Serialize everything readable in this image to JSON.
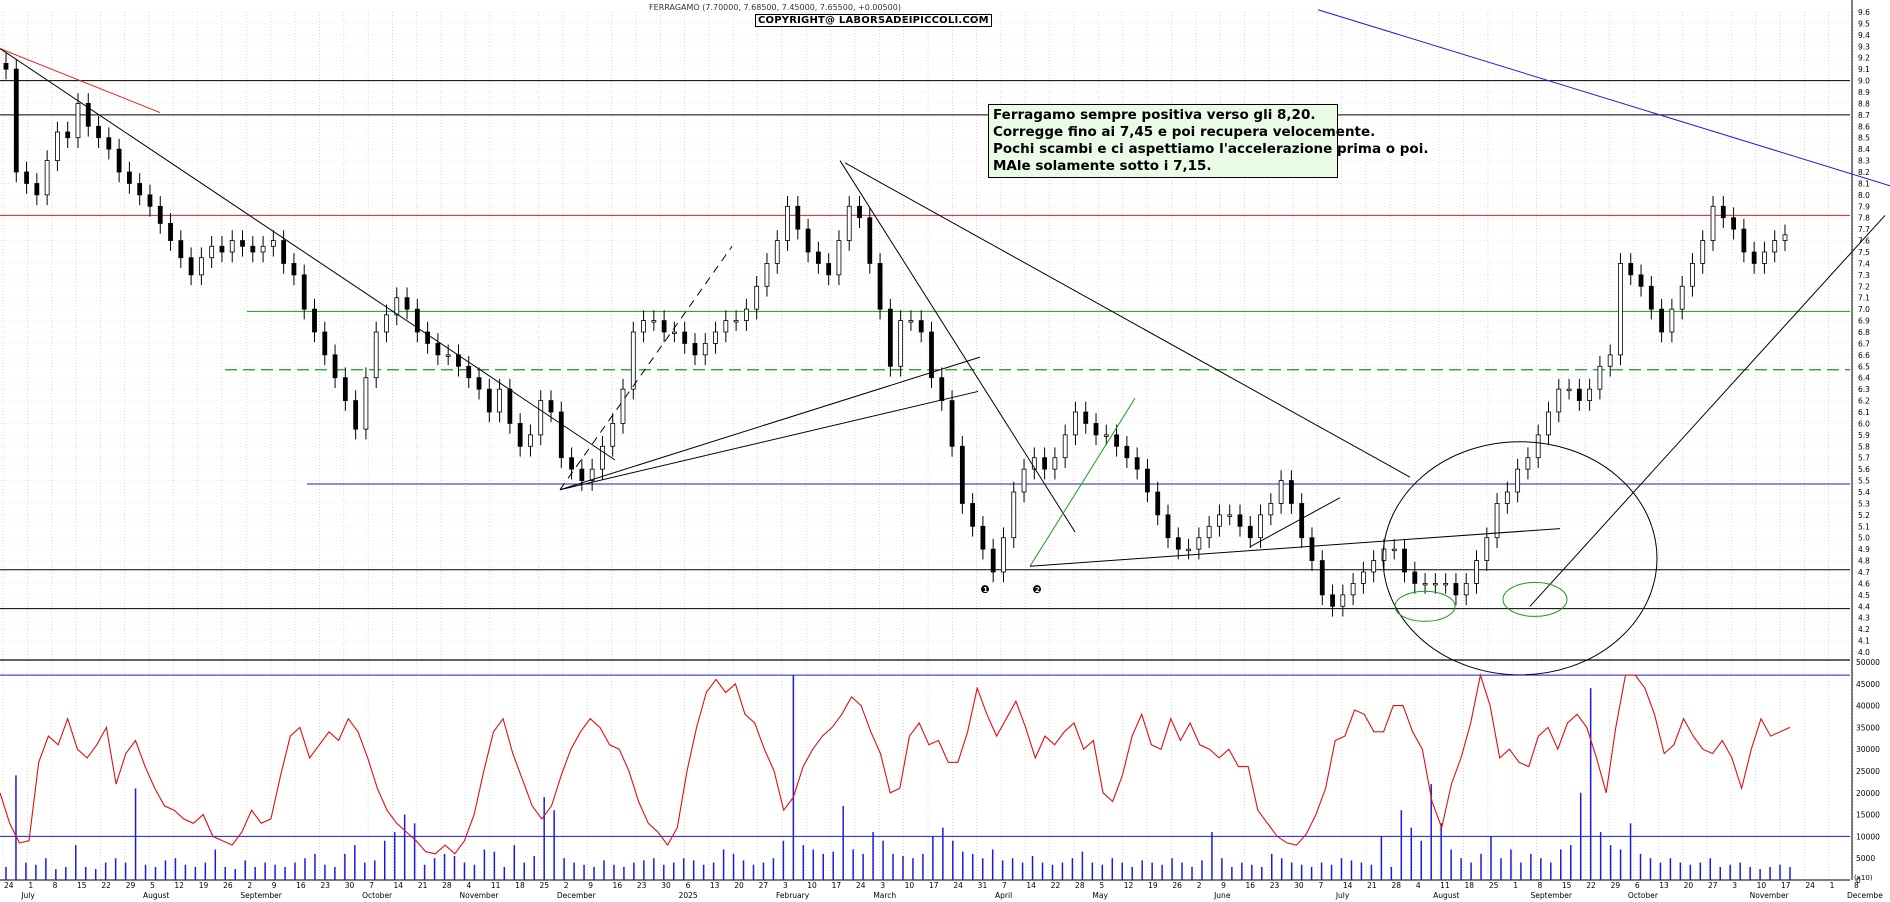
{
  "header": {
    "title": "FERRAGAMO (7.70000, 7.68500, 7.45000, 7.65500, +0.00500)",
    "copyright": "COPYRIGHT@ LABORSADEIPICCOLI.COM"
  },
  "annotation": {
    "lines": [
      "Ferragamo sempre positiva verso gli 8,20.",
      "Corregge fino ai 7,45 e poi recupera velocemente.",
      "Pochi scambi e ci aspettiamo l'accelerazione prima o poi.",
      "MAle solamente sotto i 7,15."
    ]
  },
  "markers": [
    "1",
    "2"
  ],
  "volume_unit_label": "(x10)",
  "colors": {
    "candles": "#000000",
    "trendline_red": "#e02020",
    "trendline_blue": "#1a1ae0",
    "support_green": "#1a9a1a",
    "volume_bars": "#1a1ae0",
    "oscillator": "#e01010"
  },
  "chart_data": [
    {
      "type": "candlestick",
      "title": "FERRAGAMO",
      "y_ticks": [
        "4.0",
        "4.1",
        "4.2",
        "4.3",
        "4.4",
        "4.5",
        "4.6",
        "4.7",
        "4.8",
        "4.9",
        "5.0",
        "5.1",
        "5.2",
        "5.3",
        "5.4",
        "5.5",
        "5.6",
        "5.7",
        "5.8",
        "5.9",
        "6.0",
        "6.1",
        "6.2",
        "6.3",
        "6.4",
        "6.5",
        "6.6",
        "6.7",
        "6.8",
        "6.9",
        "7.0",
        "7.1",
        "7.2",
        "7.3",
        "7.4",
        "7.5",
        "7.6",
        "7.7",
        "7.8",
        "7.9",
        "8.0",
        "8.1",
        "8.2",
        "8.3",
        "8.4",
        "8.5",
        "8.6",
        "8.7",
        "8.8",
        "8.9",
        "9.0",
        "9.1",
        "9.2",
        "9.3",
        "9.4",
        "9.5",
        "9.6"
      ],
      "ylim": [
        4.0,
        9.6
      ],
      "x_day_ticks": [
        "24",
        "1",
        "8",
        "15",
        "22",
        "29",
        "5",
        "12",
        "19",
        "26",
        "2",
        "9",
        "16",
        "23",
        "30",
        "7",
        "14",
        "21",
        "28",
        "4",
        "11",
        "18",
        "25",
        "2",
        "9",
        "16",
        "23",
        "30",
        "6",
        "13",
        "20",
        "27",
        "3",
        "10",
        "17",
        "24",
        "3",
        "10",
        "17",
        "24",
        "31",
        "7",
        "14",
        "22",
        "28",
        "5",
        "12",
        "19",
        "26",
        "2",
        "9",
        "16",
        "23",
        "30",
        "7",
        "14",
        "21",
        "28",
        "4",
        "11",
        "18",
        "25",
        "1",
        "8",
        "15",
        "22",
        "29",
        "6",
        "13",
        "20",
        "27",
        "3",
        "10",
        "17",
        "24",
        "1",
        "8"
      ],
      "x_month_ticks": [
        "July",
        "August",
        "September",
        "October",
        "November",
        "December",
        "2025",
        "February",
        "March",
        "April",
        "May",
        "June",
        "July",
        "August",
        "September",
        "October",
        "November",
        "Decembe"
      ],
      "closes": [
        9.1,
        8.2,
        8.1,
        8.0,
        8.3,
        8.55,
        8.5,
        8.8,
        8.6,
        8.5,
        8.4,
        8.2,
        8.1,
        8.0,
        7.9,
        7.75,
        7.6,
        7.45,
        7.3,
        7.45,
        7.55,
        7.5,
        7.6,
        7.55,
        7.5,
        7.55,
        7.6,
        7.4,
        7.3,
        7.0,
        6.8,
        6.6,
        6.4,
        6.2,
        5.95,
        6.4,
        6.8,
        6.95,
        7.1,
        7.0,
        6.8,
        6.7,
        6.6,
        6.6,
        6.5,
        6.4,
        6.3,
        6.1,
        6.3,
        6.0,
        5.8,
        5.9,
        6.2,
        6.1,
        5.7,
        5.6,
        5.5,
        5.6,
        5.8,
        6.0,
        6.3,
        6.8,
        6.9,
        6.9,
        6.8,
        6.8,
        6.7,
        6.6,
        6.7,
        6.8,
        6.9,
        6.9,
        7.0,
        7.2,
        7.4,
        7.6,
        7.9,
        7.7,
        7.5,
        7.4,
        7.3,
        7.6,
        7.9,
        7.8,
        7.4,
        7.0,
        6.5,
        6.9,
        6.9,
        6.8,
        6.4,
        6.2,
        5.8,
        5.3,
        5.1,
        4.9,
        4.7,
        5.0,
        5.4,
        5.6,
        5.7,
        5.6,
        5.7,
        5.9,
        6.1,
        6.0,
        5.9,
        5.9,
        5.8,
        5.7,
        5.6,
        5.4,
        5.2,
        5.0,
        4.9,
        4.9,
        5.0,
        5.1,
        5.2,
        5.2,
        5.1,
        5.0,
        5.2,
        5.3,
        5.5,
        5.3,
        5.0,
        4.8,
        4.5,
        4.4,
        4.5,
        4.6,
        4.7,
        4.8,
        4.9,
        4.9,
        4.7,
        4.6,
        4.6,
        4.6,
        4.6,
        4.5,
        4.6,
        4.8,
        5.0,
        5.3,
        5.4,
        5.6,
        5.7,
        5.9,
        6.1,
        6.3,
        6.3,
        6.2,
        6.3,
        6.5,
        6.6,
        7.4,
        7.3,
        7.2,
        7.0,
        6.8,
        7.0,
        7.2,
        7.4,
        7.6,
        7.9,
        7.8,
        7.7,
        7.5,
        7.4,
        7.5,
        7.6,
        7.65
      ]
    },
    {
      "type": "bar",
      "title": "Volume",
      "y_ticks": [
        "0",
        "5000",
        "10000",
        "15000",
        "20000",
        "25000",
        "30000",
        "35000",
        "40000",
        "45000",
        "50000"
      ],
      "ylim": [
        0,
        50000
      ],
      "reference_levels": [
        10000,
        47000
      ],
      "values": [
        3000,
        24000,
        4000,
        3500,
        5000,
        2500,
        3000,
        8000,
        3000,
        2500,
        4000,
        5000,
        4000,
        21000,
        3500,
        3000,
        4500,
        5000,
        3500,
        3000,
        4000,
        7000,
        3000,
        2500,
        4500,
        3000,
        4000,
        3500,
        3000,
        4000,
        5000,
        6000,
        3500,
        3000,
        6000,
        8000,
        4000,
        4500,
        9000,
        11000,
        15000,
        13000,
        3500,
        5000,
        6000,
        5500,
        4000,
        3500,
        7000,
        6500,
        3000,
        8000,
        4000,
        5500,
        19000,
        16000,
        5000,
        4000,
        3500,
        3000,
        4500,
        3500,
        3000,
        4000,
        4500,
        5000,
        3500,
        4000,
        5000,
        4500,
        3500,
        4000,
        7000,
        6000,
        4500,
        3500,
        4000,
        5000,
        9000,
        47000,
        8000,
        7000,
        6000,
        6500,
        17000,
        7000,
        6000,
        11000,
        9000,
        6000,
        5500,
        5000,
        6000,
        10000,
        12000,
        9000,
        6500,
        6000,
        5000,
        7000,
        4500,
        5000,
        4000,
        5500,
        4000,
        3500,
        4000,
        5000,
        6500,
        4000,
        3500,
        5000,
        4000,
        3000,
        4500,
        4000,
        3500,
        5000,
        4000,
        3000,
        4500,
        11000,
        5000,
        3000,
        4000,
        3500,
        3000,
        6000,
        5000,
        4000,
        3500,
        3000,
        4000,
        3500,
        5000,
        4500,
        4000,
        3500,
        10000,
        3000,
        16000,
        12000,
        9000,
        22000,
        13000,
        7000,
        5000,
        4000,
        6000,
        10000,
        5000,
        7000,
        4000,
        6000,
        5000,
        4000,
        7000,
        8000,
        20000,
        44000,
        11000,
        8000,
        7000,
        13000,
        6000,
        5000,
        4000,
        5000,
        4000,
        3500,
        4000,
        5000,
        3000,
        3500,
        4000,
        3000,
        2500,
        3000,
        3500,
        3000
      ],
      "oscillator_values": [
        20000,
        13000,
        8500,
        9000,
        27000,
        33000,
        31000,
        37000,
        30000,
        28000,
        31000,
        35000,
        22000,
        29000,
        32000,
        26000,
        21000,
        17000,
        16000,
        14000,
        13000,
        15000,
        10000,
        9000,
        8000,
        11000,
        16000,
        13000,
        14000,
        24000,
        33000,
        35000,
        28000,
        31000,
        34000,
        32000,
        37000,
        34000,
        28000,
        21000,
        16000,
        13000,
        11000,
        9000,
        6500,
        6000,
        8000,
        6000,
        9000,
        15000,
        25000,
        34000,
        37000,
        29000,
        23000,
        17000,
        14000,
        17000,
        24000,
        30000,
        34000,
        37000,
        35000,
        31000,
        30000,
        25000,
        18000,
        13000,
        11000,
        8000,
        12000,
        25000,
        35000,
        43000,
        46000,
        43000,
        45000,
        38000,
        36000,
        30000,
        25000,
        16000,
        19000,
        26000,
        30000,
        33000,
        35000,
        38000,
        42000,
        40000,
        34000,
        29000,
        20000,
        21000,
        33000,
        36000,
        31000,
        32000,
        27000,
        27000,
        34000,
        44000,
        38000,
        33000,
        37000,
        41000,
        35000,
        28000,
        33000,
        31000,
        34000,
        36000,
        30000,
        32000,
        20000,
        18000,
        24000,
        33000,
        38000,
        31000,
        30000,
        37000,
        32000,
        36000,
        31000,
        30000,
        28000,
        30000,
        26000,
        26000,
        16000,
        13000,
        10000,
        8500,
        8000,
        10500,
        15000,
        21000,
        32000,
        33000,
        39000,
        38000,
        34000,
        34000,
        40000,
        40000,
        34000,
        30000,
        18000,
        12000,
        22000,
        28000,
        36000,
        47000,
        40000,
        28000,
        30000,
        27000,
        26000,
        33000,
        35000,
        30000,
        36000,
        38000,
        35000,
        28000,
        20000,
        35000,
        47000,
        47000,
        44000,
        38000,
        29000,
        31000,
        37000,
        33000,
        30000,
        29000,
        32000,
        28000,
        21000,
        30000,
        37000,
        33000,
        34000,
        35000
      ]
    }
  ]
}
